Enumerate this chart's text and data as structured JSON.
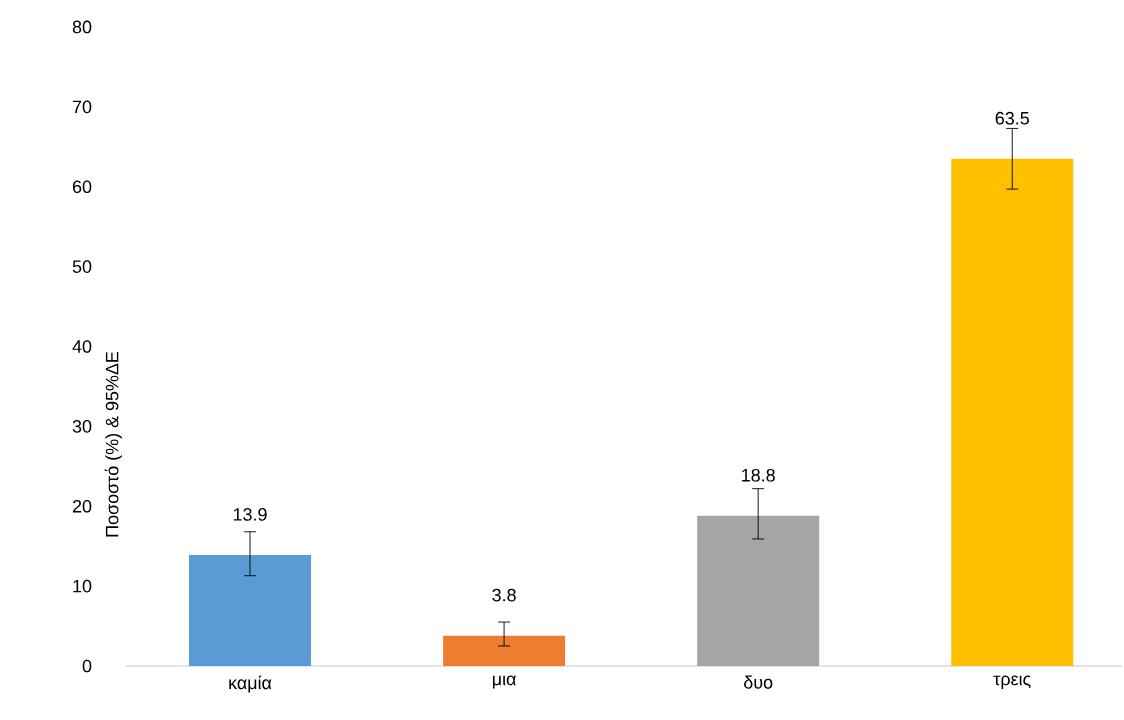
{
  "chart_data": {
    "type": "bar",
    "ylabel": "Ποσοστό (%) & 95%ΔΕ",
    "categories": [
      "καμία",
      "μια",
      "δυο",
      "τρεις"
    ],
    "values": [
      13.9,
      3.8,
      18.8,
      63.5
    ],
    "colors": [
      "#5b9bd5",
      "#ed7d31",
      "#a5a5a5",
      "#ffc000"
    ],
    "errors": [
      [
        11.3,
        16.8
      ],
      [
        2.5,
        5.5
      ],
      [
        15.9,
        22.2
      ],
      [
        59.7,
        67.3
      ]
    ],
    "data_labels": true,
    "ylim": [
      0,
      80
    ],
    "yticks": [
      0,
      10,
      20,
      30,
      40,
      50,
      60,
      70,
      80
    ],
    "grid": false
  }
}
